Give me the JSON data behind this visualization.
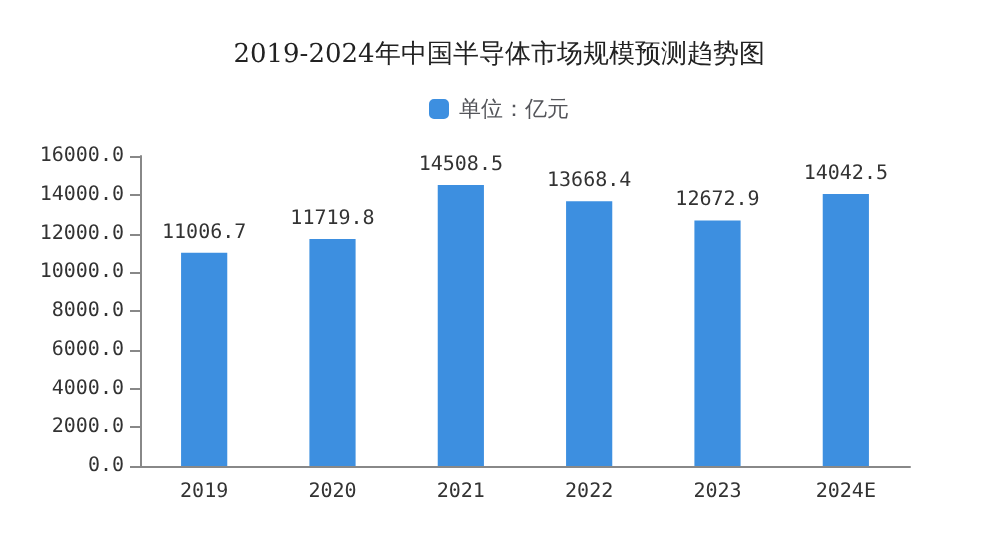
{
  "chart_data": {
    "type": "bar",
    "title": "2019-2024年中国半导体市场规模预测趋势图",
    "categories": [
      "2019",
      "2020",
      "2021",
      "2022",
      "2023",
      "2024E"
    ],
    "series": [
      {
        "name": "单位：亿元",
        "color": "#3d8fe0",
        "values": [
          11006.7,
          11719.8,
          14508.5,
          13668.4,
          12672.9,
          14042.5
        ]
      }
    ],
    "ylim": [
      0,
      16000
    ],
    "yticks": [
      {
        "value": 0,
        "label": "0.0"
      },
      {
        "value": 2000,
        "label": "2000.0"
      },
      {
        "value": 4000,
        "label": "4000.0"
      },
      {
        "value": 6000,
        "label": "6000.0"
      },
      {
        "value": 8000,
        "label": "8000.0"
      },
      {
        "value": 10000,
        "label": "10000.0"
      },
      {
        "value": 12000,
        "label": "12000.0"
      },
      {
        "value": 14000,
        "label": "14000.0"
      },
      {
        "value": 16000,
        "label": "16000.0"
      }
    ],
    "data_labels": true,
    "grid": false,
    "legend": "top"
  }
}
